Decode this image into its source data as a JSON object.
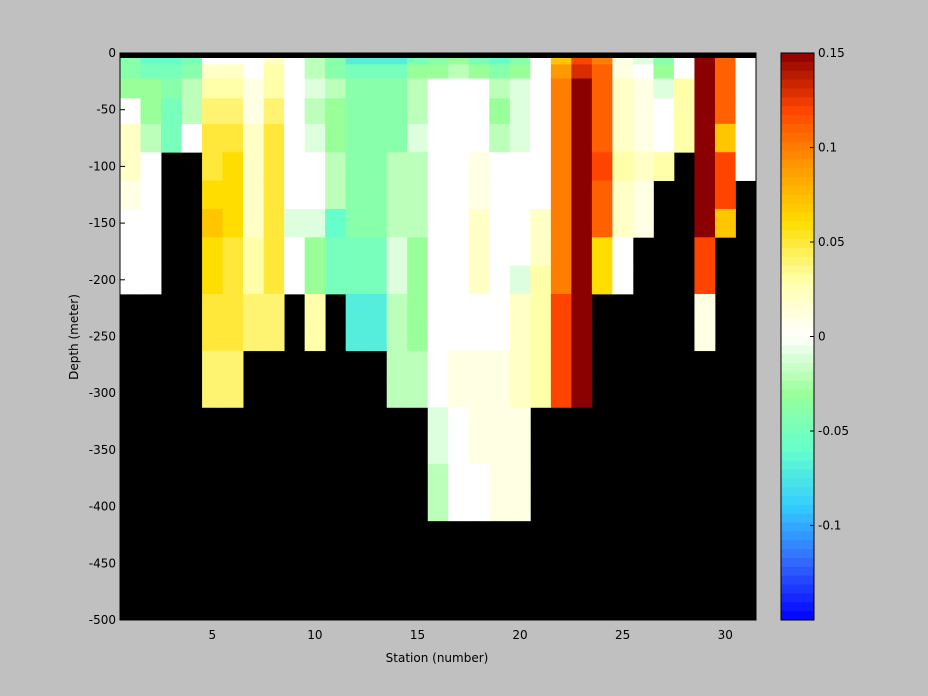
{
  "figure": {
    "background": "#c0c0c0",
    "mask_color": "#000000"
  },
  "chart_data": {
    "type": "heatmap",
    "title": "",
    "xlabel": "Station (number)",
    "ylabel": "Depth (meter)",
    "x_range": [
      1,
      31
    ],
    "y_range": [
      -500,
      0
    ],
    "x_ticks": [
      5,
      10,
      15,
      20,
      25,
      30
    ],
    "y_ticks": [
      0,
      -50,
      -100,
      -150,
      -200,
      -250,
      -300,
      -350,
      -400,
      -450,
      -500
    ],
    "stations": [
      1,
      2,
      3,
      4,
      5,
      6,
      7,
      8,
      9,
      10,
      11,
      12,
      13,
      14,
      15,
      16,
      17,
      18,
      19,
      20,
      21,
      22,
      23,
      24,
      25,
      26,
      27,
      28,
      29,
      30,
      31
    ],
    "depths": [
      -5,
      -15,
      -30,
      -50,
      -75,
      -100,
      -125,
      -150,
      -175,
      -200,
      -225,
      -250,
      -275,
      -300,
      -325,
      -350,
      -375,
      -400
    ],
    "values": [
      [
        -0.04,
        -0.06,
        -0.06,
        -0.05,
        0.0,
        0.0,
        0.0,
        0.02,
        0.0,
        -0.02,
        -0.04,
        -0.07,
        -0.07,
        -0.07,
        -0.05,
        -0.04,
        -0.03,
        -0.05,
        -0.06,
        -0.04,
        0.0,
        0.07,
        0.12,
        0.1,
        0.01,
        -0.01,
        -0.04,
        0.0,
        0.15,
        0.11,
        0.0
      ],
      [
        -0.04,
        -0.05,
        -0.05,
        -0.04,
        0.02,
        0.02,
        0.0,
        0.03,
        0.0,
        -0.02,
        -0.04,
        -0.05,
        -0.05,
        -0.05,
        -0.03,
        -0.03,
        -0.02,
        -0.03,
        -0.04,
        -0.03,
        0.0,
        0.09,
        0.13,
        0.11,
        0.01,
        0.0,
        -0.03,
        0.0,
        0.15,
        0.11,
        0.0
      ],
      [
        -0.03,
        -0.03,
        -0.04,
        -0.02,
        0.03,
        0.03,
        0.01,
        0.03,
        0.0,
        -0.01,
        -0.02,
        -0.04,
        -0.04,
        -0.04,
        -0.02,
        0.0,
        0.0,
        0.0,
        -0.02,
        -0.01,
        0.0,
        0.1,
        0.15,
        0.11,
        0.02,
        0.01,
        -0.01,
        0.03,
        0.15,
        0.11,
        0.0
      ],
      [
        0.0,
        -0.03,
        -0.05,
        -0.02,
        0.04,
        0.04,
        0.01,
        0.04,
        0.0,
        -0.02,
        -0.03,
        -0.04,
        -0.04,
        -0.04,
        -0.02,
        0.0,
        0.0,
        0.0,
        -0.03,
        -0.01,
        0.0,
        0.1,
        0.15,
        0.11,
        0.02,
        0.01,
        0.0,
        0.03,
        0.15,
        0.11,
        0.0
      ],
      [
        0.02,
        -0.02,
        -0.05,
        0.0,
        0.05,
        0.05,
        0.02,
        0.05,
        0.0,
        -0.01,
        -0.03,
        -0.04,
        -0.04,
        -0.04,
        -0.01,
        0.0,
        0.0,
        0.0,
        -0.02,
        -0.01,
        0.0,
        0.1,
        0.15,
        0.11,
        0.02,
        0.01,
        0.0,
        0.03,
        0.15,
        0.07,
        0.0
      ],
      [
        0.02,
        0.0,
        null,
        null,
        0.05,
        0.06,
        0.02,
        0.05,
        0.0,
        0.0,
        -0.02,
        -0.04,
        -0.04,
        -0.02,
        -0.02,
        0.0,
        0.0,
        0.01,
        0.0,
        0.0,
        0.0,
        0.1,
        0.15,
        0.12,
        0.03,
        0.02,
        0.03,
        null,
        0.15,
        0.12,
        0.0
      ],
      [
        0.01,
        0.0,
        null,
        null,
        0.06,
        0.06,
        0.02,
        0.05,
        0.0,
        0.0,
        -0.02,
        -0.04,
        -0.04,
        -0.02,
        -0.02,
        0.0,
        0.0,
        0.01,
        0.0,
        0.0,
        0.0,
        0.1,
        0.15,
        0.11,
        0.02,
        0.01,
        null,
        null,
        0.15,
        0.12,
        null
      ],
      [
        0.0,
        0.0,
        null,
        null,
        0.07,
        0.06,
        0.02,
        0.05,
        -0.01,
        -0.01,
        -0.06,
        -0.04,
        -0.04,
        -0.02,
        -0.02,
        0.0,
        0.0,
        0.02,
        0.0,
        0.0,
        0.02,
        0.1,
        0.15,
        0.11,
        0.02,
        0.01,
        null,
        null,
        0.15,
        0.07,
        null
      ],
      [
        0.0,
        0.0,
        null,
        null,
        0.06,
        0.05,
        0.03,
        0.05,
        0.0,
        -0.03,
        -0.05,
        -0.05,
        -0.05,
        -0.01,
        -0.03,
        0.0,
        0.0,
        0.02,
        0.0,
        0.0,
        0.02,
        0.1,
        0.15,
        0.06,
        0.0,
        null,
        null,
        null,
        0.12,
        null,
        null
      ],
      [
        0.0,
        0.0,
        null,
        null,
        0.06,
        0.05,
        0.03,
        0.05,
        0.0,
        -0.03,
        -0.05,
        -0.05,
        -0.05,
        -0.01,
        -0.03,
        0.0,
        0.0,
        0.02,
        0.0,
        -0.01,
        0.03,
        0.1,
        0.15,
        0.06,
        0.0,
        null,
        null,
        null,
        0.12,
        null,
        null
      ],
      [
        null,
        null,
        null,
        null,
        0.05,
        0.05,
        0.04,
        0.04,
        null,
        0.03,
        null,
        -0.07,
        -0.07,
        -0.02,
        -0.03,
        0.0,
        0.0,
        0.0,
        0.0,
        0.02,
        0.03,
        0.12,
        0.15,
        null,
        null,
        null,
        null,
        null,
        0.01,
        null,
        null
      ],
      [
        null,
        null,
        null,
        null,
        0.05,
        0.05,
        0.04,
        0.04,
        null,
        0.03,
        null,
        -0.07,
        -0.07,
        -0.02,
        -0.03,
        0.0,
        0.0,
        0.0,
        0.0,
        0.02,
        0.03,
        0.12,
        0.15,
        null,
        null,
        null,
        null,
        null,
        0.01,
        null,
        null
      ],
      [
        null,
        null,
        null,
        null,
        0.04,
        0.04,
        null,
        null,
        null,
        null,
        null,
        null,
        null,
        -0.02,
        -0.02,
        0.0,
        0.01,
        0.01,
        0.01,
        0.02,
        0.03,
        0.12,
        0.15,
        null,
        null,
        null,
        null,
        null,
        null,
        null,
        null
      ],
      [
        null,
        null,
        null,
        null,
        0.04,
        0.04,
        null,
        null,
        null,
        null,
        null,
        null,
        null,
        -0.02,
        -0.02,
        0.0,
        0.01,
        0.01,
        0.01,
        0.02,
        0.03,
        0.12,
        0.15,
        null,
        null,
        null,
        null,
        null,
        null,
        null,
        null
      ],
      [
        null,
        null,
        null,
        null,
        null,
        null,
        null,
        null,
        null,
        null,
        null,
        null,
        null,
        null,
        null,
        -0.01,
        0.0,
        0.01,
        0.01,
        0.01,
        null,
        null,
        null,
        null,
        null,
        null,
        null,
        null,
        null,
        null,
        null
      ],
      [
        null,
        null,
        null,
        null,
        null,
        null,
        null,
        null,
        null,
        null,
        null,
        null,
        null,
        null,
        null,
        -0.01,
        0.0,
        0.01,
        0.01,
        0.01,
        null,
        null,
        null,
        null,
        null,
        null,
        null,
        null,
        null,
        null,
        null
      ],
      [
        null,
        null,
        null,
        null,
        null,
        null,
        null,
        null,
        null,
        null,
        null,
        null,
        null,
        null,
        null,
        -0.02,
        0.0,
        0.0,
        0.01,
        0.01,
        null,
        null,
        null,
        null,
        null,
        null,
        null,
        null,
        null,
        null,
        null
      ],
      [
        null,
        null,
        null,
        null,
        null,
        null,
        null,
        null,
        null,
        null,
        null,
        null,
        null,
        null,
        null,
        -0.02,
        0.0,
        0.0,
        0.01,
        0.01,
        null,
        null,
        null,
        null,
        null,
        null,
        null,
        null,
        null,
        null,
        null
      ]
    ],
    "colorbar": {
      "range": [
        -0.15,
        0.15
      ],
      "ticks": [
        0.15,
        0.1,
        0.05,
        0,
        -0.05,
        -0.1
      ],
      "tick_labels": [
        "0.15",
        "0.1",
        "0.05",
        "0",
        "-0.05",
        "-0.1"
      ],
      "colormap_stops": [
        "#0000ff",
        "#3366ff",
        "#33ccff",
        "#66ffcc",
        "#99ff99",
        "#ffffff",
        "#ffffaa",
        "#ffdd00",
        "#ff9900",
        "#ff4400",
        "#8b0000"
      ]
    }
  }
}
